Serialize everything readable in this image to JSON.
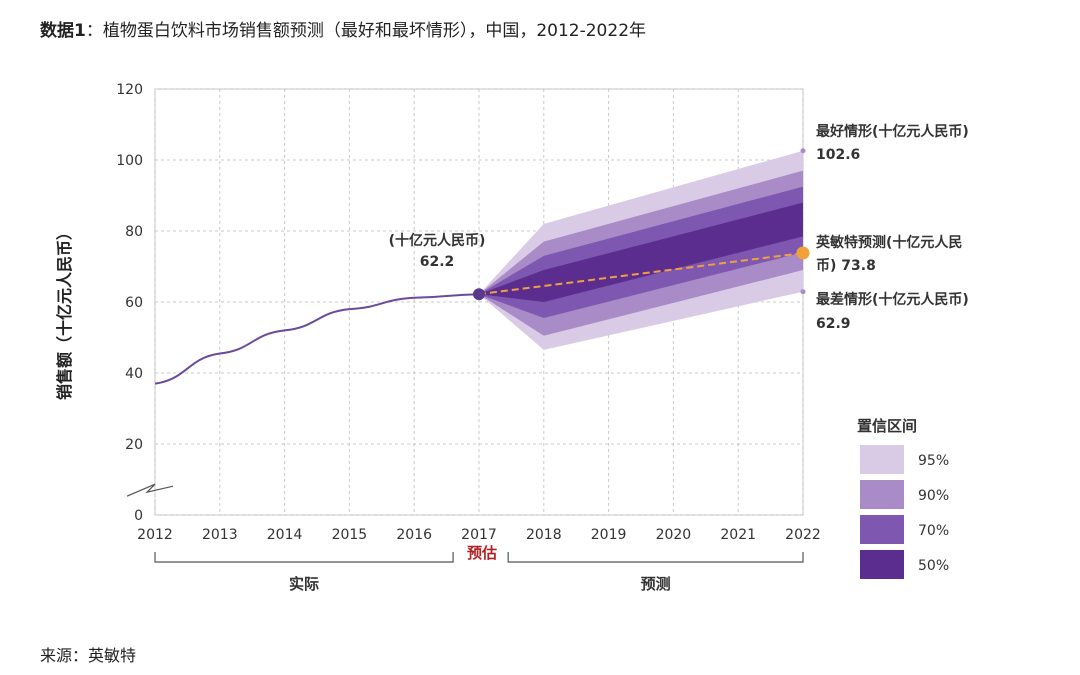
{
  "title": {
    "prefix": "数据1",
    "text": "：植物蛋白饮料市场销售额预测（最好和最坏情形），中国，2012-2022年"
  },
  "source": "来源：英敏特",
  "chart_data": {
    "type": "line",
    "title": "植物蛋白饮料市场销售额预测（最好和最坏情形），中国，2012-2022年",
    "ylabel": "销售额（十亿元人民币）",
    "xlabel": "",
    "ylim": [
      0,
      120
    ],
    "yticks": [
      0,
      20,
      40,
      60,
      80,
      100,
      120
    ],
    "xticks": [
      "2012",
      "2013",
      "2014",
      "2015",
      "2016",
      "2017",
      "2018",
      "2019",
      "2020",
      "2021",
      "2022"
    ],
    "grid": true,
    "actual": {
      "x": [
        2012,
        2013,
        2014,
        2015,
        2016,
        2017
      ],
      "y": [
        37.0,
        45.5,
        52.0,
        58.0,
        61.2,
        62.2
      ]
    },
    "forecast": {
      "x": [
        2017,
        2022
      ],
      "y": [
        62.2,
        73.8
      ]
    },
    "bands": [
      {
        "name": "95%",
        "color": "#d9cbe6",
        "x": [
          2017,
          2018,
          2022
        ],
        "upper": [
          62.2,
          82.0,
          102.6
        ],
        "lower": [
          62.2,
          46.5,
          62.9
        ]
      },
      {
        "name": "90%",
        "color": "#a98bc7",
        "x": [
          2017,
          2018,
          2022
        ],
        "upper": [
          62.2,
          77.0,
          97.0
        ],
        "lower": [
          62.2,
          50.5,
          69.0
        ]
      },
      {
        "name": "70%",
        "color": "#7e58b0",
        "x": [
          2017,
          2018,
          2022
        ],
        "upper": [
          62.2,
          73.0,
          92.5
        ],
        "lower": [
          62.2,
          55.5,
          74.0
        ]
      },
      {
        "name": "50%",
        "color": "#5a2d8e",
        "x": [
          2017,
          2018,
          2022
        ],
        "upper": [
          62.2,
          69.0,
          88.0
        ],
        "lower": [
          62.2,
          60.0,
          78.5
        ]
      }
    ],
    "annotations": {
      "estimate_unit": "(十亿元人民币)",
      "estimate_value": "62.2",
      "best_label": "最好情形(十亿元人民币)",
      "best_value": "102.6",
      "forecast_label_line1": "英敏特预测(十亿元人民",
      "forecast_label_line2": "币) 73.8",
      "worst_label": "最差情形(十亿元人民币)",
      "worst_value": "62.9"
    },
    "periods": {
      "actual": "实际",
      "estimate": "预估",
      "forecast": "预测"
    },
    "legend": {
      "title": "置信区间",
      "position": "bottom-right",
      "items": [
        "95%",
        "90%",
        "70%",
        "50%"
      ]
    }
  }
}
